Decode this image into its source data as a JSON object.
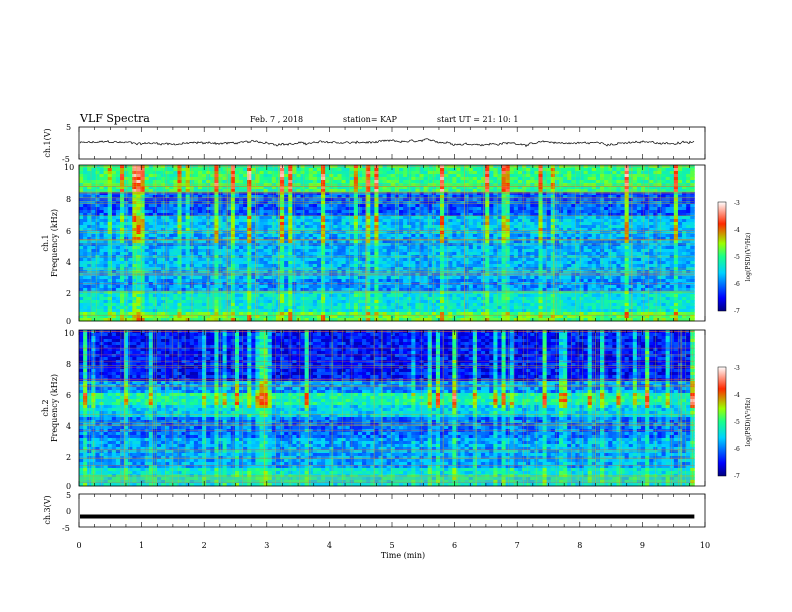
{
  "chart_data": {
    "type": "heatmap",
    "title": "VLF Spectra",
    "header": {
      "date": "Feb. 7 , 2018",
      "station": "station= KAP",
      "start": "start  UT =   21: 10: 1"
    },
    "xlabel": "Time (min)",
    "xlim": [
      0,
      10
    ],
    "x_ticks": [
      "0",
      "1",
      "2",
      "3",
      "4",
      "5",
      "6",
      "7",
      "8",
      "9",
      "10"
    ],
    "panels": [
      {
        "type": "line",
        "ylabel": "ch.1(V)",
        "ylim": [
          -5,
          5
        ],
        "y_ticks": [
          "5",
          "-5"
        ],
        "x_end": 9.83,
        "trace_level": 0.0,
        "trace_amplitude": 0.6
      },
      {
        "type": "heatmap",
        "ylabel_line1": "ch.1",
        "ylabel_line2": "Frequency (kHz)",
        "ylim": [
          0,
          10
        ],
        "y_ticks": [
          "0",
          "2",
          "4",
          "6",
          "8",
          "10"
        ],
        "x_end": 9.83,
        "colorbar": {
          "label": "log(PSD)(V²/Hz)",
          "range": [
            -7,
            -3
          ],
          "ticks": [
            "-3",
            "-4",
            "-5",
            "-6",
            "-7"
          ]
        }
      },
      {
        "type": "heatmap",
        "ylabel_line1": "ch.2",
        "ylabel_line2": "Frequency (kHz)",
        "ylim": [
          0,
          10
        ],
        "y_ticks": [
          "0",
          "2",
          "4",
          "6",
          "8",
          "10"
        ],
        "x_end": 9.83,
        "colorbar": {
          "label": "log(PSD)(V²/Hz)",
          "range": [
            -7,
            -3
          ],
          "ticks": [
            "-3",
            "-4",
            "-5",
            "-6",
            "-7"
          ]
        }
      },
      {
        "type": "line",
        "ylabel": "ch.3(V)",
        "ylim": [
          -5,
          5
        ],
        "y_ticks": [
          "5",
          "0",
          "-5"
        ],
        "x_end": 9.83,
        "trace_level": -1.8,
        "trace_amplitude": 0.0
      }
    ]
  }
}
